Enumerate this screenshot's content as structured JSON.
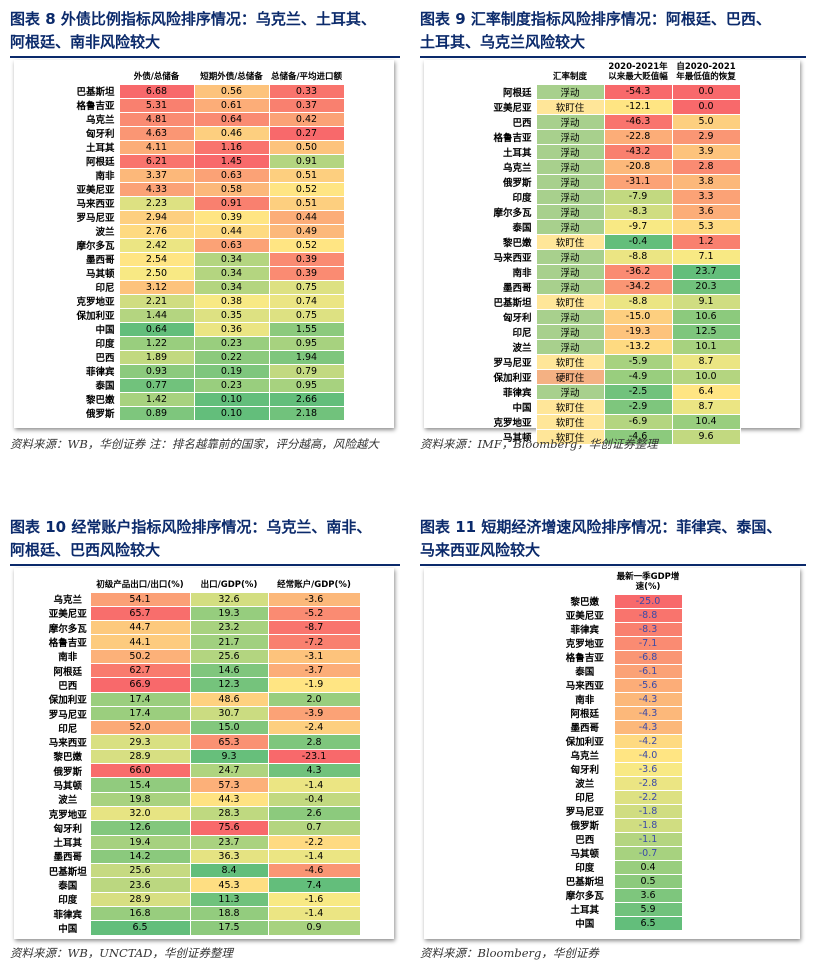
{
  "t8": {
    "title_l1": "图表 8   外债比例指标风险排序情况：乌克兰、土耳其、",
    "title_l2": "阿根廷、南非风险较大",
    "headers": [
      "外债/总储备",
      "短期外债/总储备",
      "总储备/平均进口额"
    ],
    "rows": [
      [
        "巴基斯坦",
        "6.68",
        "0.56",
        "0.33"
      ],
      [
        "格鲁吉亚",
        "5.31",
        "0.61",
        "0.37"
      ],
      [
        "乌克兰",
        "4.81",
        "0.64",
        "0.42"
      ],
      [
        "匈牙利",
        "4.63",
        "0.46",
        "0.27"
      ],
      [
        "土耳其",
        "4.11",
        "1.16",
        "0.50"
      ],
      [
        "阿根廷",
        "6.21",
        "1.45",
        "0.91"
      ],
      [
        "南非",
        "3.37",
        "0.63",
        "0.51"
      ],
      [
        "亚美尼亚",
        "4.33",
        "0.58",
        "0.52"
      ],
      [
        "马来西亚",
        "2.23",
        "0.91",
        "0.51"
      ],
      [
        "罗马尼亚",
        "2.94",
        "0.39",
        "0.44"
      ],
      [
        "波兰",
        "2.76",
        "0.44",
        "0.49"
      ],
      [
        "摩尔多瓦",
        "2.42",
        "0.63",
        "0.52"
      ],
      [
        "墨西哥",
        "2.54",
        "0.34",
        "0.39"
      ],
      [
        "马其顿",
        "2.50",
        "0.34",
        "0.39"
      ],
      [
        "印尼",
        "3.12",
        "0.34",
        "0.75"
      ],
      [
        "克罗地亚",
        "2.21",
        "0.38",
        "0.74"
      ],
      [
        "保加利亚",
        "1.44",
        "0.35",
        "0.75"
      ],
      [
        "中国",
        "0.64",
        "0.36",
        "1.55"
      ],
      [
        "印度",
        "1.22",
        "0.23",
        "0.95"
      ],
      [
        "巴西",
        "1.89",
        "0.22",
        "1.94"
      ],
      [
        "菲律宾",
        "0.93",
        "0.19",
        "0.79"
      ],
      [
        "泰国",
        "0.77",
        "0.23",
        "0.95"
      ],
      [
        "黎巴嫩",
        "1.42",
        "0.10",
        "2.66"
      ],
      [
        "俄罗斯",
        "0.89",
        "0.10",
        "2.18"
      ]
    ],
    "source": "资料来源：WB，华创证券  注：排名越靠前的国家，评分越高，风险越大"
  },
  "t9": {
    "title_l1": "图表 9   汇率制度指标风险排序情况：阿根廷、巴西、",
    "title_l2": "土耳其、乌克兰风险较大",
    "headers": [
      "汇率制度",
      "2020-2021年以来最大贬值幅",
      "自2020-2021年最低值的恢复"
    ],
    "rows": [
      [
        "阿根廷",
        "浮动",
        "-54.3",
        "0.0"
      ],
      [
        "亚美尼亚",
        "软盯住",
        "-12.1",
        "0.0"
      ],
      [
        "巴西",
        "浮动",
        "-46.3",
        "5.0"
      ],
      [
        "格鲁吉亚",
        "浮动",
        "-22.8",
        "2.9"
      ],
      [
        "土耳其",
        "浮动",
        "-43.2",
        "3.9"
      ],
      [
        "乌克兰",
        "浮动",
        "-20.8",
        "2.8"
      ],
      [
        "俄罗斯",
        "浮动",
        "-31.1",
        "3.8"
      ],
      [
        "印度",
        "浮动",
        "-7.9",
        "3.3"
      ],
      [
        "摩尔多瓦",
        "浮动",
        "-8.3",
        "3.6"
      ],
      [
        "泰国",
        "浮动",
        "-9.7",
        "5.3"
      ],
      [
        "黎巴嫩",
        "软盯住",
        "-0.4",
        "1.2"
      ],
      [
        "马来西亚",
        "浮动",
        "-8.8",
        "7.1"
      ],
      [
        "南非",
        "浮动",
        "-36.2",
        "23.7"
      ],
      [
        "墨西哥",
        "浮动",
        "-34.2",
        "20.3"
      ],
      [
        "巴基斯坦",
        "软盯住",
        "-8.8",
        "9.1"
      ],
      [
        "匈牙利",
        "浮动",
        "-15.0",
        "10.6"
      ],
      [
        "印尼",
        "浮动",
        "-19.3",
        "12.5"
      ],
      [
        "波兰",
        "浮动",
        "-13.2",
        "10.1"
      ],
      [
        "罗马尼亚",
        "软盯住",
        "-5.9",
        "8.7"
      ],
      [
        "保加利亚",
        "硬盯住",
        "-4.9",
        "10.0"
      ],
      [
        "菲律宾",
        "浮动",
        "-2.5",
        "6.4"
      ],
      [
        "中国",
        "软盯住",
        "-2.9",
        "8.7"
      ],
      [
        "克罗地亚",
        "软盯住",
        "-6.9",
        "10.4"
      ],
      [
        "马其顿",
        "软盯住",
        "-4.6",
        "9.6"
      ]
    ],
    "source": "资料来源：IMF，Bloomberg，华创证券整理"
  },
  "t10": {
    "title_l1": "图表 10   经常账户指标风险排序情况：乌克兰、南非、",
    "title_l2": "阿根廷、巴西风险较大",
    "headers": [
      "初级产品出口/出口(%)",
      "出口/GDP(%)",
      "经常账户/GDP(%)"
    ],
    "rows": [
      [
        "乌克兰",
        "54.1",
        "32.6",
        "-3.6"
      ],
      [
        "亚美尼亚",
        "65.7",
        "19.3",
        "-5.2"
      ],
      [
        "摩尔多瓦",
        "44.7",
        "23.2",
        "-8.7"
      ],
      [
        "格鲁吉亚",
        "44.1",
        "21.7",
        "-7.2"
      ],
      [
        "南非",
        "50.2",
        "25.6",
        "-3.1"
      ],
      [
        "阿根廷",
        "62.7",
        "14.6",
        "-3.7"
      ],
      [
        "巴西",
        "66.9",
        "12.3",
        "-1.9"
      ],
      [
        "保加利亚",
        "17.4",
        "48.6",
        "2.0"
      ],
      [
        "罗马尼亚",
        "17.4",
        "30.7",
        "-3.9"
      ],
      [
        "印尼",
        "52.0",
        "15.0",
        "-2.4"
      ],
      [
        "马来西亚",
        "29.3",
        "65.3",
        "2.8"
      ],
      [
        "黎巴嫩",
        "28.9",
        "9.3",
        "-23.1"
      ],
      [
        "俄罗斯",
        "66.0",
        "24.7",
        "4.3"
      ],
      [
        "马其顿",
        "15.4",
        "57.3",
        "-1.4"
      ],
      [
        "波兰",
        "19.8",
        "44.3",
        "-0.4"
      ],
      [
        "克罗地亚",
        "32.0",
        "28.3",
        "2.6"
      ],
      [
        "匈牙利",
        "12.6",
        "75.6",
        "0.7"
      ],
      [
        "土耳其",
        "19.4",
        "23.7",
        "-2.2"
      ],
      [
        "墨西哥",
        "14.2",
        "36.3",
        "-1.4"
      ],
      [
        "巴基斯坦",
        "25.6",
        "8.4",
        "-4.6"
      ],
      [
        "泰国",
        "23.6",
        "45.3",
        "7.4"
      ],
      [
        "印度",
        "28.9",
        "11.3",
        "-1.6"
      ],
      [
        "菲律宾",
        "16.8",
        "18.8",
        "-1.4"
      ],
      [
        "中国",
        "6.5",
        "17.5",
        "0.9"
      ]
    ],
    "source": "资料来源：WB，UNCTAD，华创证券整理"
  },
  "t11": {
    "title_l1": "图表 11   短期经济增速风险排序情况：菲律宾、泰国、",
    "title_l2": "马来西亚风险较大",
    "header": "最新一季GDP增速(%)",
    "rows": [
      [
        "黎巴嫩",
        "-25.0"
      ],
      [
        "亚美尼亚",
        "-8.8"
      ],
      [
        "菲律宾",
        "-8.3"
      ],
      [
        "克罗地亚",
        "-7.1"
      ],
      [
        "格鲁吉亚",
        "-6.8"
      ],
      [
        "泰国",
        "-6.1"
      ],
      [
        "马来西亚",
        "-5.6"
      ],
      [
        "南非",
        "-4.3"
      ],
      [
        "阿根廷",
        "-4.3"
      ],
      [
        "墨西哥",
        "-4.3"
      ],
      [
        "保加利亚",
        "-4.2"
      ],
      [
        "乌克兰",
        "-4.0"
      ],
      [
        "匈牙利",
        "-3.6"
      ],
      [
        "波兰",
        "-2.8"
      ],
      [
        "印尼",
        "-2.2"
      ],
      [
        "罗马尼亚",
        "-1.8"
      ],
      [
        "俄罗斯",
        "-1.8"
      ],
      [
        "巴西",
        "-1.1"
      ],
      [
        "马其顿",
        "-0.7"
      ],
      [
        "印度",
        "0.4"
      ],
      [
        "巴基斯坦",
        "0.5"
      ],
      [
        "摩尔多瓦",
        "3.6"
      ],
      [
        "土耳其",
        "5.9"
      ],
      [
        "中国",
        "6.5"
      ]
    ],
    "source": "资料来源：Bloomberg，华创证券"
  },
  "colors": {
    "title": "#0b2a6b",
    "risk_high": "#f8696b",
    "risk_mid": "#ffeb84",
    "risk_low": "#63be7b",
    "neg_text": "#3a49a8"
  }
}
